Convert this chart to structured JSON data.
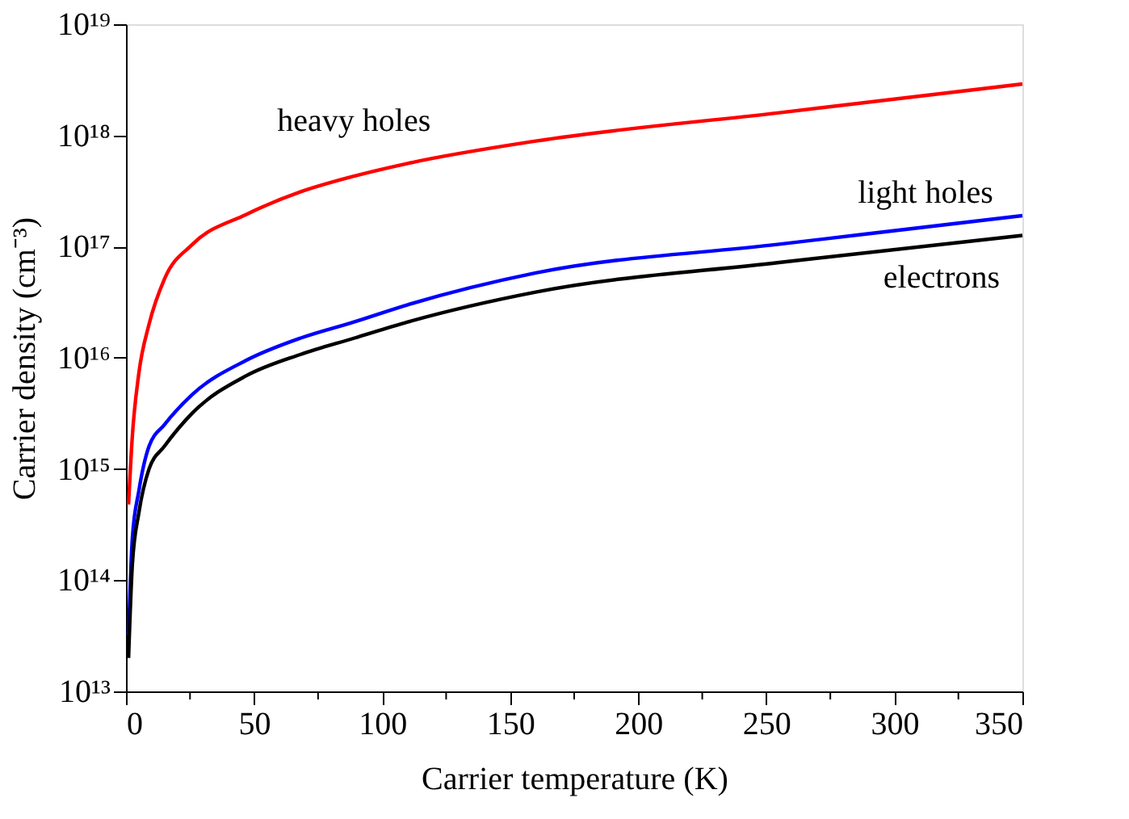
{
  "chart_data": {
    "type": "line",
    "xlabel": "Carrier temperature (K)",
    "ylabel": "Carrier density  (cm⁻³)",
    "x": [
      1,
      2.5,
      5,
      9,
      15,
      26,
      47,
      68,
      89,
      110,
      160,
      255,
      350
    ],
    "series": [
      {
        "name": "heavy holes",
        "color": "#ff0000",
        "values": [
          480000000000000.0,
          2000000000000000.0,
          7200000000000000.0,
          2e+16,
          5.1e+16,
          1.05e+17,
          1.95e+17,
          3.1e+17,
          4.3e+17,
          5.6e+17,
          8.9e+17,
          1.6e+18,
          2.9e+18
        ]
      },
      {
        "name": "light holes",
        "color": "#0000ff",
        "values": [
          32000000000000.0,
          240000000000000.0,
          630000000000000.0,
          1600000000000000.0,
          2500000000000000.0,
          4700000000000000.0,
          9500000000000000.0,
          1.5e+16,
          2.1e+16,
          3e+16,
          5.8e+16,
          1.05e+17,
          1.9e+17
        ]
      },
      {
        "name": "electrons",
        "color": "#000000",
        "values": [
          20000000000000.0,
          140000000000000.0,
          400000000000000.0,
          1000000000000000.0,
          1600000000000000.0,
          3200000000000000.0,
          6900000000000000.0,
          1.07e+16,
          1.5e+16,
          2.1e+16,
          3.9e+16,
          7.2e+16,
          1.26e+17
        ]
      }
    ],
    "xlim": [
      0,
      350
    ],
    "xticks": [
      0,
      {
        "value": 25,
        "label": null
      },
      50,
      {
        "value": 75,
        "label": null
      },
      100,
      {
        "value": 125,
        "label": null
      },
      150,
      {
        "value": 175,
        "label": null
      },
      200,
      {
        "value": 225,
        "label": null
      },
      250,
      {
        "value": 275,
        "label": null
      },
      300,
      {
        "value": 325,
        "label": null
      },
      350
    ],
    "ylim": [
      10000000000000.0,
      1e+19
    ],
    "yticks": [
      {
        "value": 10000000000000.0,
        "label": "10¹³"
      },
      {
        "value": 100000000000000.0,
        "label": "10¹⁴"
      },
      {
        "value": 1000000000000000.0,
        "label": "10¹⁵"
      },
      {
        "value": 1e+16,
        "label": "10¹⁶"
      },
      {
        "value": 1e+17,
        "label": "10¹⁷"
      },
      {
        "value": 1e+18,
        "label": "10¹⁸"
      },
      {
        "value": 1e+19,
        "label": "10¹⁹"
      }
    ],
    "log": true,
    "grid": false,
    "legend": false,
    "marker": "none",
    "line_style": "solid"
  }
}
